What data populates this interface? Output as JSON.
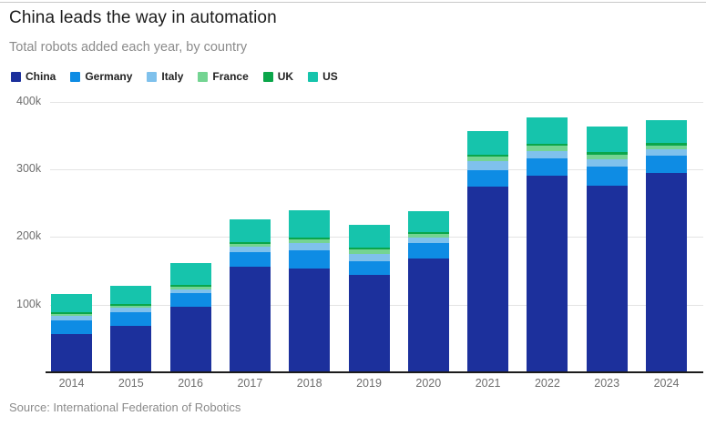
{
  "page": {
    "title": "China leads the way in automation",
    "subtitle": "Total robots added each year, by country",
    "source": "Source: International Federation of Robotics"
  },
  "colors": {
    "china": "#1c309c",
    "germany": "#0e8ce4",
    "italy": "#7fc1ec",
    "france": "#74d492",
    "uk": "#0ba64a",
    "us": "#16c4ac",
    "grid": "#e4e4e4",
    "axis": "#1c1c1c",
    "muted_text": "#6e6e6e"
  },
  "chart_data": {
    "type": "bar",
    "stacked": true,
    "title": "China leads the way in automation",
    "subtitle": "Total robots added each year, by country",
    "categories": [
      "2014",
      "2015",
      "2016",
      "2017",
      "2018",
      "2019",
      "2020",
      "2021",
      "2022",
      "2023",
      "2024"
    ],
    "series": [
      {
        "name": "China",
        "color": "#1c309c",
        "values": [
          57100,
          68600,
          96500,
          156200,
          154000,
          144000,
          168400,
          275000,
          290300,
          276300,
          295000
        ]
      },
      {
        "name": "Germany",
        "color": "#0e8ce4",
        "values": [
          20100,
          20100,
          20000,
          21400,
          26700,
          20500,
          22300,
          23800,
          25600,
          28400,
          25000
        ]
      },
      {
        "name": "Italy",
        "color": "#7fc1ec",
        "values": [
          6200,
          6700,
          6500,
          7700,
          9800,
          11100,
          8500,
          14100,
          11500,
          10400,
          10000
        ]
      },
      {
        "name": "France",
        "color": "#74d492",
        "values": [
          2900,
          3000,
          4200,
          4800,
          5800,
          6700,
          5400,
          5900,
          7400,
          6400,
          5500
        ]
      },
      {
        "name": "UK",
        "color": "#0ba64a",
        "values": [
          2100,
          1600,
          1800,
          2300,
          2300,
          2000,
          2200,
          2100,
          2500,
          3800,
          3500
        ]
      },
      {
        "name": "US",
        "color": "#16c4ac",
        "values": [
          26200,
          27500,
          31400,
          33200,
          40400,
          33300,
          30800,
          35000,
          39600,
          37600,
          34200
        ]
      }
    ],
    "yticks": [
      {
        "value": 100000,
        "label": "100k"
      },
      {
        "value": 200000,
        "label": "200k"
      },
      {
        "value": 300000,
        "label": "300k"
      },
      {
        "value": 400000,
        "label": "400k"
      }
    ],
    "ylim": [
      0,
      420000
    ],
    "grid": true,
    "legend_position": "top",
    "xlabel": "",
    "ylabel": ""
  }
}
